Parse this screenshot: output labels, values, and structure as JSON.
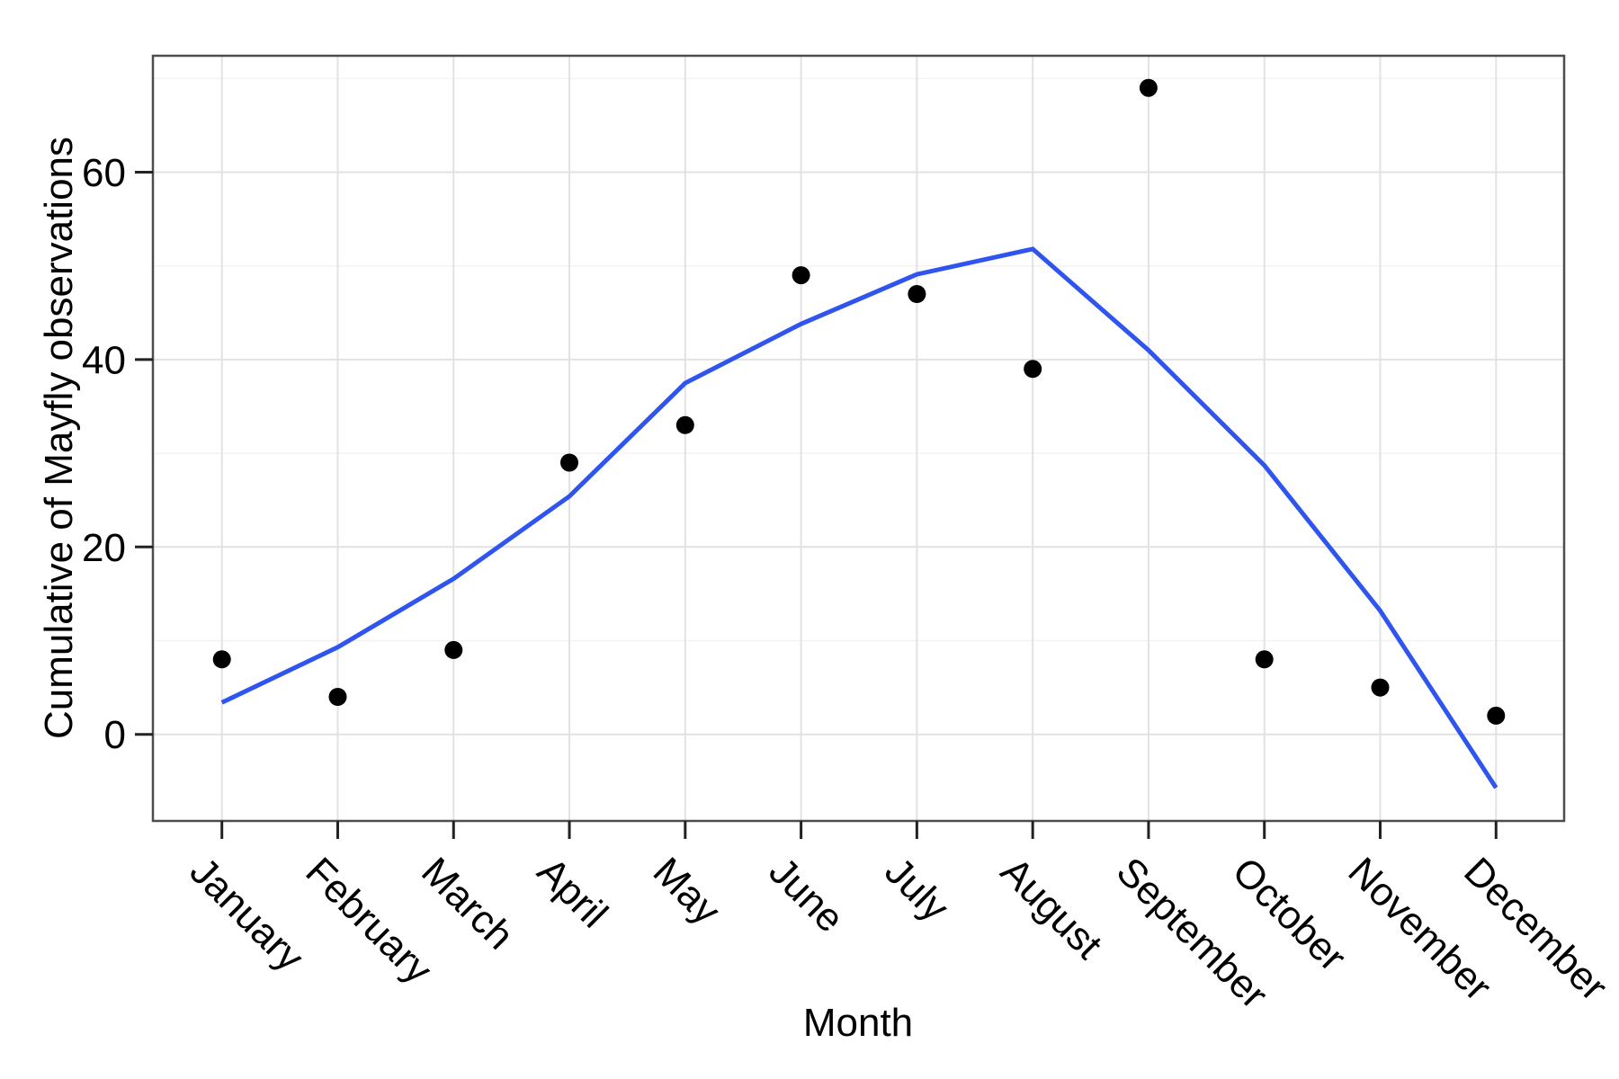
{
  "chart_data": {
    "type": "scatter",
    "title": "",
    "xlabel": "Month",
    "ylabel": "Cumulative of Mayfly observations",
    "categories": [
      "January",
      "February",
      "March",
      "April",
      "May",
      "June",
      "July",
      "August",
      "September",
      "October",
      "November",
      "December"
    ],
    "series": [
      {
        "name": "mayfly-observations-points",
        "render": "points",
        "values": [
          8,
          4,
          9,
          29,
          33,
          49,
          47,
          39,
          69,
          8,
          5,
          2
        ],
        "color": "#000000"
      },
      {
        "name": "smooth-fit-line",
        "render": "line",
        "values": [
          3.4,
          9.3,
          16.6,
          25.4,
          37.5,
          43.8,
          49.1,
          51.8,
          41.0,
          28.7,
          13.2,
          -5.7
        ],
        "color": "#2F55EE"
      }
    ],
    "y_axis": {
      "ticks": [
        0,
        20,
        40,
        60
      ],
      "minor_ticks": [
        10,
        30,
        50,
        70
      ],
      "range": [
        -9.3,
        72.4
      ]
    },
    "x_axis": {
      "tick_label_angle_deg": 45
    },
    "legend": "none",
    "grid": {
      "horizontal_major": true,
      "horizontal_minor": true,
      "vertical_major": true
    },
    "colors": {
      "background": "#FFFFFF",
      "panel_background": "#FFFFFF",
      "panel_border": "#4D4D4D",
      "grid_major": "#E2E2E2",
      "grid_minor": "#F3F3F3",
      "axis_tick": "#222222",
      "text": "#000000",
      "point": "#000000",
      "line": "#2F55EE"
    }
  }
}
